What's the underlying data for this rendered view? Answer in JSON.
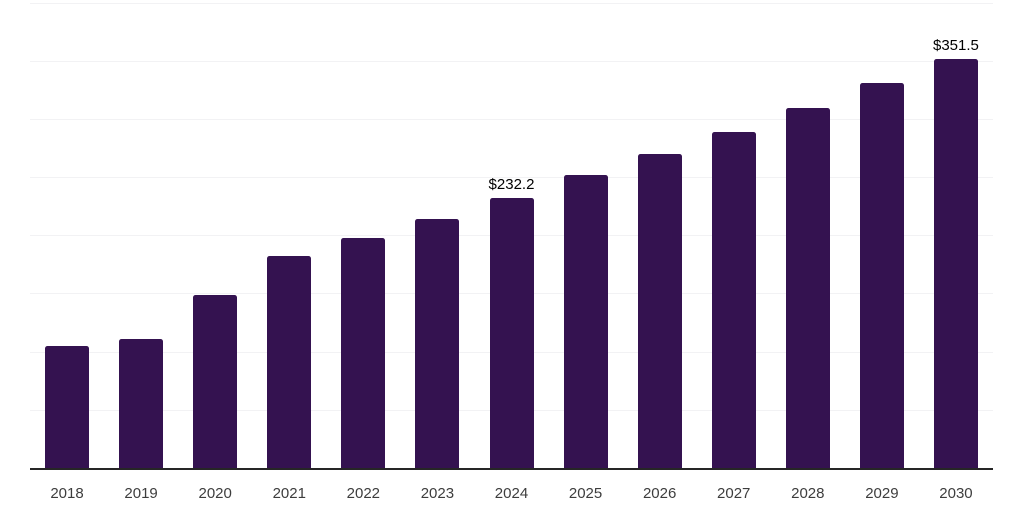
{
  "chart_data": {
    "type": "bar",
    "title": "",
    "xlabel": "",
    "ylabel": "",
    "categories": [
      "2018",
      "2019",
      "2020",
      "2021",
      "2022",
      "2023",
      "2024",
      "2025",
      "2026",
      "2027",
      "2028",
      "2029",
      "2030"
    ],
    "values": [
      104.5,
      111.0,
      148.8,
      182.2,
      197.7,
      214.0,
      232.2,
      251.7,
      269.8,
      288.6,
      309.2,
      330.6,
      351.5
    ],
    "data_labels": {
      "2024": "$232.2",
      "2030": "$351.5"
    },
    "ylim": [
      0,
      400
    ],
    "grid_step": 50,
    "grid": "horizontal-only",
    "legend": "none",
    "y_axis_labels": "none",
    "colors": {
      "bar": "#341250",
      "gridline": "#f2f2f4",
      "axis": "#262626",
      "tick_label": "#3d3d3d",
      "data_label": "#000000",
      "background": "#ffffff"
    }
  }
}
